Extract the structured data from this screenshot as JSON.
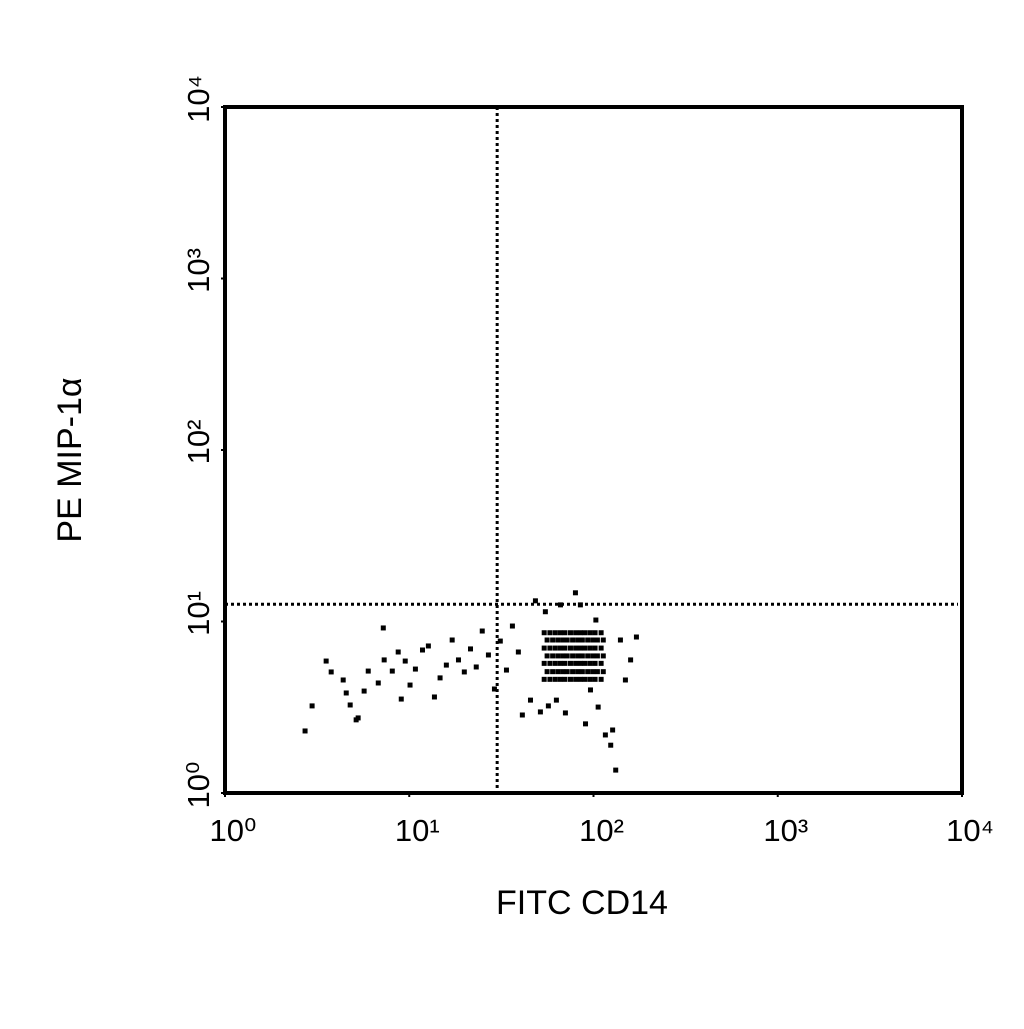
{
  "chart_data": {
    "type": "scatter",
    "xlabel": "FITC CD14",
    "ylabel": "PE MIP-1α",
    "log_x": true,
    "log_y": true,
    "xlim": [
      1,
      10000
    ],
    "ylim": [
      1,
      10000
    ],
    "xticks": [
      {
        "value": 1,
        "label": "10⁰"
      },
      {
        "value": 10,
        "label": "10¹"
      },
      {
        "value": 100,
        "label": "10²"
      },
      {
        "value": 1000,
        "label": "10³"
      },
      {
        "value": 10000,
        "label": "10⁴"
      }
    ],
    "yticks": [
      {
        "value": 1,
        "label": "10⁰"
      },
      {
        "value": 10,
        "label": "10¹"
      },
      {
        "value": 100,
        "label": "10²"
      },
      {
        "value": 1000,
        "label": "10³"
      },
      {
        "value": 10000,
        "label": "10⁴"
      }
    ],
    "quadrant_x": 30,
    "quadrant_y": 12.6,
    "color": "#000000",
    "x": [
      54,
      58,
      62,
      66,
      70,
      75,
      80,
      85,
      90,
      96,
      102,
      110,
      56,
      60,
      64,
      68,
      72,
      77,
      82,
      87,
      93,
      99,
      105,
      113,
      54,
      58,
      62,
      66,
      70,
      75,
      80,
      85,
      90,
      96,
      102,
      110,
      56,
      60,
      64,
      68,
      72,
      77,
      82,
      87,
      93,
      99,
      105,
      113,
      54,
      58,
      62,
      66,
      70,
      75,
      80,
      85,
      90,
      96,
      102,
      110,
      56,
      60,
      64,
      68,
      72,
      77,
      82,
      87,
      93,
      99,
      105,
      113,
      54,
      58,
      62,
      66,
      70,
      75,
      80,
      85,
      90,
      96,
      102,
      110,
      2.72,
      2.97,
      3.54,
      3.77,
      4.38,
      4.55,
      4.78,
      5.28,
      5.15,
      5.69,
      5.99,
      6.79,
      7.23,
      7.31,
      8.09,
      8.71,
      9.05,
      9.51,
      10.1,
      10.8,
      11.8,
      12.7,
      13.7,
      14.7,
      15.9,
      17.1,
      18.5,
      19.9,
      21.5,
      23.1,
      24.9,
      26.9,
      29.0,
      31.2,
      33.7,
      36.3,
      39.1,
      41.1,
      45.5,
      48.4,
      51.5,
      56.9,
      62.9,
      70.4,
      79.8,
      84.9,
      90.5,
      96.3,
      106,
      116,
      124,
      127,
      132,
      140,
      159,
      171,
      66.2,
      54.8,
      103,
      149
    ],
    "y": [
      4.6,
      4.6,
      4.6,
      4.6,
      4.6,
      4.6,
      4.6,
      4.6,
      4.6,
      4.6,
      4.6,
      4.6,
      5.1,
      5.1,
      5.1,
      5.1,
      5.1,
      5.1,
      5.1,
      5.1,
      5.1,
      5.1,
      5.1,
      5.1,
      5.7,
      5.7,
      5.7,
      5.7,
      5.7,
      5.7,
      5.7,
      5.7,
      5.7,
      5.7,
      5.7,
      5.7,
      6.3,
      6.3,
      6.3,
      6.3,
      6.3,
      6.3,
      6.3,
      6.3,
      6.3,
      6.3,
      6.3,
      6.3,
      7.0,
      7.0,
      7.0,
      7.0,
      7.0,
      7.0,
      7.0,
      7.0,
      7.0,
      7.0,
      7.0,
      7.0,
      7.8,
      7.8,
      7.8,
      7.8,
      7.8,
      7.8,
      7.8,
      7.8,
      7.8,
      7.8,
      7.8,
      7.8,
      8.6,
      8.6,
      8.6,
      8.6,
      8.6,
      8.6,
      8.6,
      8.6,
      8.6,
      8.6,
      8.6,
      8.6,
      2.3,
      3.22,
      5.88,
      5.08,
      4.56,
      3.83,
      3.26,
      2.74,
      2.67,
      3.93,
      5.14,
      4.38,
      9.17,
      5.97,
      5.14,
      6.64,
      3.53,
      5.88,
      4.26,
      5.28,
      6.82,
      7.2,
      3.63,
      4.69,
      5.57,
      7.8,
      5.97,
      5.08,
      6.92,
      5.43,
      8.8,
      6.38,
      4.04,
      7.69,
      5.21,
      9.41,
      6.64,
      2.85,
      3.48,
      13.2,
      2.97,
      3.22,
      3.48,
      2.93,
      14.7,
      12.5,
      2.53,
      3.99,
      3.17,
      2.18,
      1.9,
      2.33,
      1.36,
      7.8,
      5.97,
      8.12,
      12.5,
      11.4,
      10.2,
      4.56
    ]
  }
}
